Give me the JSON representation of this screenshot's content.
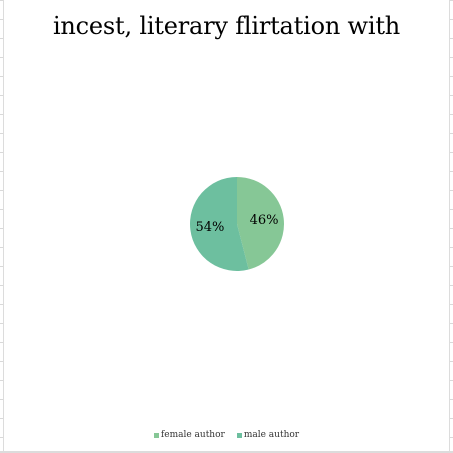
{
  "chart_data": {
    "type": "pie",
    "title": "incest, literary flirtation with",
    "categories": [
      "female author",
      "male author"
    ],
    "values": [
      46,
      54
    ],
    "labels": [
      "46%",
      "54%"
    ],
    "colors": [
      "#86c796",
      "#6dbf9f"
    ],
    "legend_placement": "bottom",
    "start_angle_deg": 0,
    "direction": "clockwise"
  }
}
